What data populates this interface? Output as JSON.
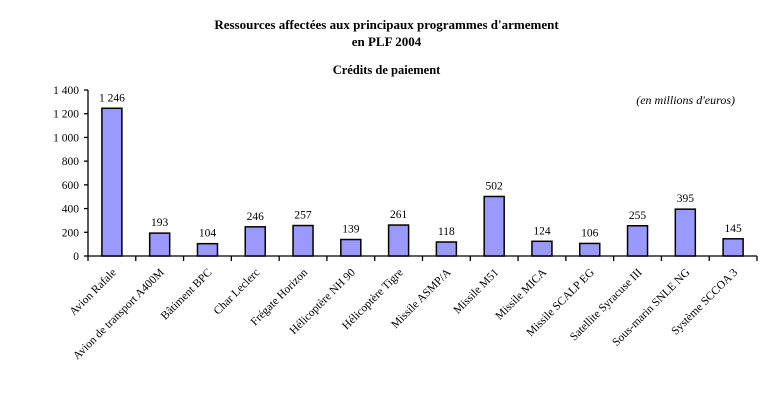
{
  "header": {
    "title_line1": "Ressources affectées aux principaux programmes d'armement",
    "title_line2": "en PLF 2004",
    "subtitle": "Crédits de paiement",
    "unit_annotation": "(en millions d'euros)"
  },
  "chart_data": {
    "type": "bar",
    "title": "Ressources affectées aux principaux programmes d'armement en PLF 2004",
    "subtitle": "Crédits de paiement",
    "annotation": "(en millions d'euros)",
    "xlabel": "",
    "ylabel": "",
    "ylim": [
      0,
      1400
    ],
    "ytick_interval": 200,
    "ytick_labels": [
      "0",
      "200",
      "400",
      "600",
      "800",
      "1 000",
      "1 200",
      "1 400"
    ],
    "grid": false,
    "legend": false,
    "bar_fill_color": "#9999FF",
    "bar_border_color": "#000000",
    "axis_color": "#000000",
    "categories": [
      "Avion Rafale",
      "Avion de transport A400M",
      "Bâtiment BPC",
      "Char Leclerc",
      "Frégate Horizon",
      "Hélicoptère NH 90",
      "Hélicoptère Tigre",
      "Missile ASMP/A",
      "Missile M51",
      "Missile MICA",
      "Missile SCALP EG",
      "Satellite Syracuse III",
      "Sous-marin SNLE NG",
      "Système SCCOA 3"
    ],
    "values": [
      1246,
      193,
      104,
      246,
      257,
      139,
      261,
      118,
      502,
      124,
      106,
      255,
      395,
      145
    ],
    "value_labels": [
      "1 246",
      "193",
      "104",
      "246",
      "257",
      "139",
      "261",
      "118",
      "502",
      "124",
      "106",
      "255",
      "395",
      "145"
    ]
  }
}
